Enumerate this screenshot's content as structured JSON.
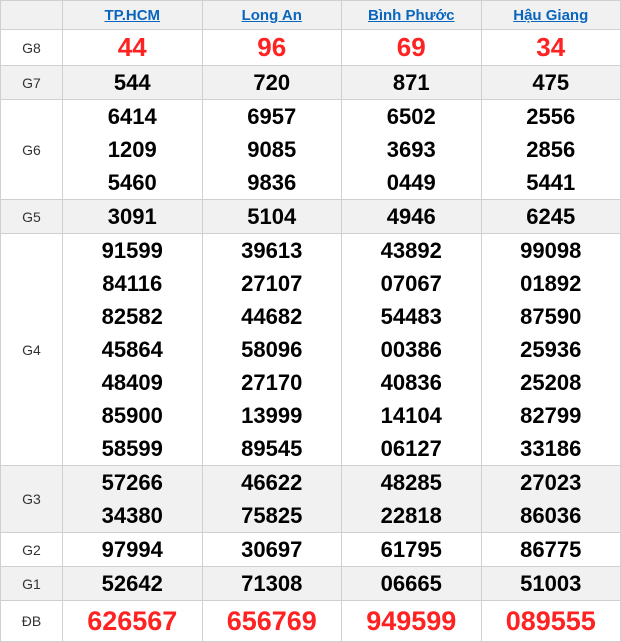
{
  "header": {
    "row_label": "",
    "columns": [
      {
        "label": "TP.HCM"
      },
      {
        "label": "Long An"
      },
      {
        "label": "Bình Phước"
      },
      {
        "label": "Hậu Giang"
      }
    ]
  },
  "prizes": [
    {
      "label": "G8",
      "highlight": "red-medium",
      "cells": [
        [
          "44"
        ],
        [
          "96"
        ],
        [
          "69"
        ],
        [
          "34"
        ]
      ]
    },
    {
      "label": "G7",
      "highlight": "",
      "cells": [
        [
          "544"
        ],
        [
          "720"
        ],
        [
          "871"
        ],
        [
          "475"
        ]
      ]
    },
    {
      "label": "G6",
      "highlight": "",
      "cells": [
        [
          "6414",
          "1209",
          "5460"
        ],
        [
          "6957",
          "9085",
          "9836"
        ],
        [
          "6502",
          "3693",
          "0449"
        ],
        [
          "2556",
          "2856",
          "5441"
        ]
      ]
    },
    {
      "label": "G5",
      "highlight": "",
      "cells": [
        [
          "3091"
        ],
        [
          "5104"
        ],
        [
          "4946"
        ],
        [
          "6245"
        ]
      ]
    },
    {
      "label": "G4",
      "highlight": "",
      "cells": [
        [
          "91599",
          "84116",
          "82582",
          "45864",
          "48409",
          "85900",
          "58599"
        ],
        [
          "39613",
          "27107",
          "44682",
          "58096",
          "27170",
          "13999",
          "89545"
        ],
        [
          "43892",
          "07067",
          "54483",
          "00386",
          "40836",
          "14104",
          "06127"
        ],
        [
          "99098",
          "01892",
          "87590",
          "25936",
          "25208",
          "82799",
          "33186"
        ]
      ]
    },
    {
      "label": "G3",
      "highlight": "",
      "cells": [
        [
          "57266",
          "34380"
        ],
        [
          "46622",
          "75825"
        ],
        [
          "48285",
          "22818"
        ],
        [
          "27023",
          "86036"
        ]
      ]
    },
    {
      "label": "G2",
      "highlight": "",
      "cells": [
        [
          "97994"
        ],
        [
          "30697"
        ],
        [
          "61795"
        ],
        [
          "86775"
        ]
      ]
    },
    {
      "label": "G1",
      "highlight": "",
      "cells": [
        [
          "52642"
        ],
        [
          "71308"
        ],
        [
          "06665"
        ],
        [
          "51003"
        ]
      ]
    },
    {
      "label": "ĐB",
      "highlight": "red-large",
      "cells": [
        [
          "626567"
        ],
        [
          "656769"
        ],
        [
          "949599"
        ],
        [
          "089555"
        ]
      ]
    }
  ],
  "colors": {
    "accent_red": "#ff2222",
    "link_blue": "#0a66bd",
    "stripe_gray": "#f1f1f1",
    "border_gray": "#d0d0d0"
  }
}
